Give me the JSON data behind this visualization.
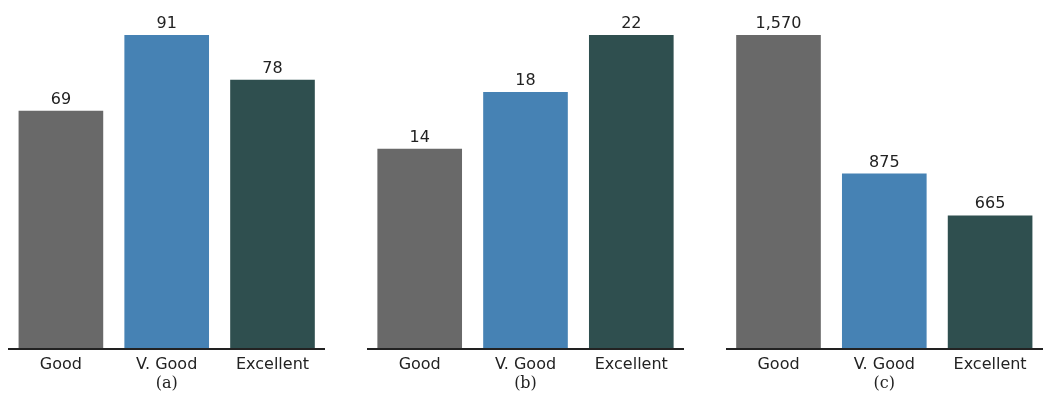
{
  "chart_data": [
    {
      "type": "bar",
      "xlabel": "(a)",
      "categories": [
        "Good",
        "V. Good",
        "Excellent"
      ],
      "values": [
        69,
        91,
        78
      ],
      "colors": [
        "#696969",
        "#4682b4",
        "#2f4f4f"
      ],
      "data_labels": true
    },
    {
      "type": "bar",
      "xlabel": "(b)",
      "categories": [
        "Good",
        "V. Good",
        "Excellent"
      ],
      "values": [
        14,
        18,
        22
      ],
      "colors": [
        "#696969",
        "#4682b4",
        "#2f4f4f"
      ],
      "data_labels": true
    },
    {
      "type": "bar",
      "xlabel": "(c)",
      "categories": [
        "Good",
        "V. Good",
        "Excellent"
      ],
      "values": [
        1570,
        875,
        665
      ],
      "colors": [
        "#696969",
        "#4682b4",
        "#2f4f4f"
      ],
      "value_labels": [
        "1,570",
        "875",
        "665"
      ]
    }
  ]
}
